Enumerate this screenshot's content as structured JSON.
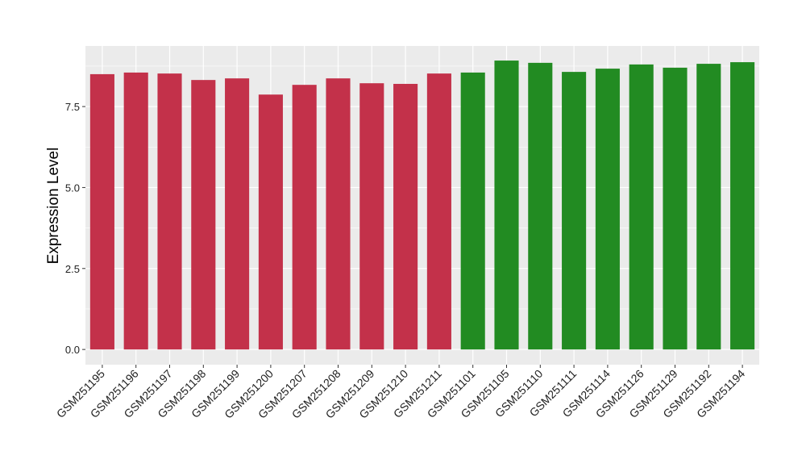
{
  "chart_data": {
    "type": "bar",
    "title": "",
    "xlabel": "",
    "ylabel": "Expression Level",
    "ylim": [
      -0.47,
      9.37
    ],
    "yticks": [
      "0.0",
      "2.5",
      "5.0",
      "7.5"
    ],
    "ytick_values": [
      0,
      2.5,
      5,
      7.5
    ],
    "grid": true,
    "categories": [
      "GSM251195",
      "GSM251196",
      "GSM251197",
      "GSM251198",
      "GSM251199",
      "GSM251200",
      "GSM251207",
      "GSM251208",
      "GSM251209",
      "GSM251210",
      "GSM251211",
      "GSM251101",
      "GSM251105",
      "GSM251110",
      "GSM251111",
      "GSM251114",
      "GSM251126",
      "GSM251129",
      "GSM251192",
      "GSM251194"
    ],
    "values": [
      8.5,
      8.55,
      8.52,
      8.32,
      8.37,
      7.87,
      8.17,
      8.37,
      8.22,
      8.2,
      8.52,
      8.55,
      8.92,
      8.85,
      8.57,
      8.67,
      8.8,
      8.7,
      8.82,
      8.87
    ],
    "groups": [
      "red",
      "red",
      "red",
      "red",
      "red",
      "red",
      "red",
      "red",
      "red",
      "red",
      "red",
      "green",
      "green",
      "green",
      "green",
      "green",
      "green",
      "green",
      "green",
      "green"
    ],
    "colors": {
      "red": "#c3314a",
      "green": "#228b22",
      "panel": "#ebebeb",
      "grid": "#ffffff"
    }
  }
}
